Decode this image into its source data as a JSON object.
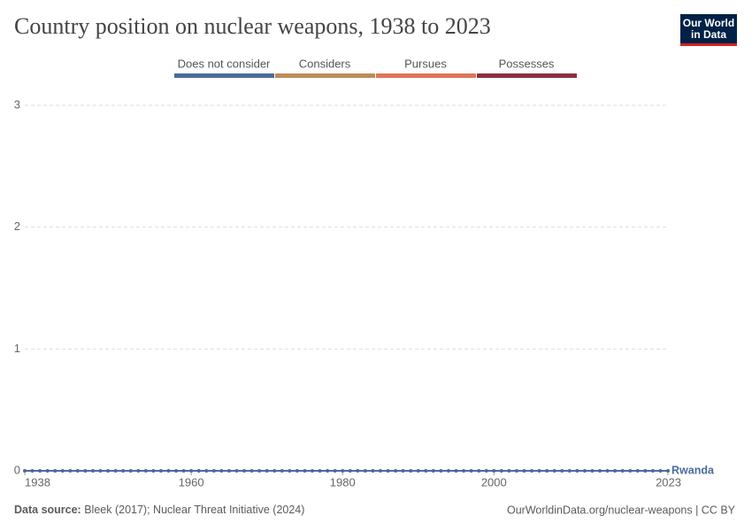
{
  "header": {
    "title": "Country position on nuclear weapons, 1938 to 2023"
  },
  "logo": {
    "line1": "Our World",
    "line2": "in Data"
  },
  "chart_data": {
    "type": "line",
    "legend": [
      {
        "label": "Does not consider",
        "color": "#4c6a9c"
      },
      {
        "label": "Considers",
        "color": "#bd8c58"
      },
      {
        "label": "Pursues",
        "color": "#e0735a"
      },
      {
        "label": "Possesses",
        "color": "#8a3142"
      }
    ],
    "x": [
      1938,
      1939,
      1940,
      1941,
      1942,
      1943,
      1944,
      1945,
      1946,
      1947,
      1948,
      1949,
      1950,
      1951,
      1952,
      1953,
      1954,
      1955,
      1956,
      1957,
      1958,
      1959,
      1960,
      1961,
      1962,
      1963,
      1964,
      1965,
      1966,
      1967,
      1968,
      1969,
      1970,
      1971,
      1972,
      1973,
      1974,
      1975,
      1976,
      1977,
      1978,
      1979,
      1980,
      1981,
      1982,
      1983,
      1984,
      1985,
      1986,
      1987,
      1988,
      1989,
      1990,
      1991,
      1992,
      1993,
      1994,
      1995,
      1996,
      1997,
      1998,
      1999,
      2000,
      2001,
      2002,
      2003,
      2004,
      2005,
      2006,
      2007,
      2008,
      2009,
      2010,
      2011,
      2012,
      2013,
      2014,
      2015,
      2016,
      2017,
      2018,
      2019,
      2020,
      2021,
      2022,
      2023
    ],
    "series": [
      {
        "name": "Rwanda",
        "color": "#4c6a9c",
        "values": [
          0,
          0,
          0,
          0,
          0,
          0,
          0,
          0,
          0,
          0,
          0,
          0,
          0,
          0,
          0,
          0,
          0,
          0,
          0,
          0,
          0,
          0,
          0,
          0,
          0,
          0,
          0,
          0,
          0,
          0,
          0,
          0,
          0,
          0,
          0,
          0,
          0,
          0,
          0,
          0,
          0,
          0,
          0,
          0,
          0,
          0,
          0,
          0,
          0,
          0,
          0,
          0,
          0,
          0,
          0,
          0,
          0,
          0,
          0,
          0,
          0,
          0,
          0,
          0,
          0,
          0,
          0,
          0,
          0,
          0,
          0,
          0,
          0,
          0,
          0,
          0,
          0,
          0,
          0,
          0,
          0,
          0,
          0,
          0,
          0,
          0
        ]
      }
    ],
    "xlim": [
      1938,
      2023
    ],
    "xticks": [
      1938,
      1960,
      1980,
      2000,
      2023
    ],
    "ylim": [
      0,
      3
    ],
    "yticks": [
      0,
      1,
      2,
      3
    ],
    "grid": true
  },
  "footer": {
    "source_label": "Data source:",
    "source": "Bleek (2017); Nuclear Threat Initiative (2024)",
    "url": "OurWorldinData.org/nuclear-weapons | CC BY"
  }
}
